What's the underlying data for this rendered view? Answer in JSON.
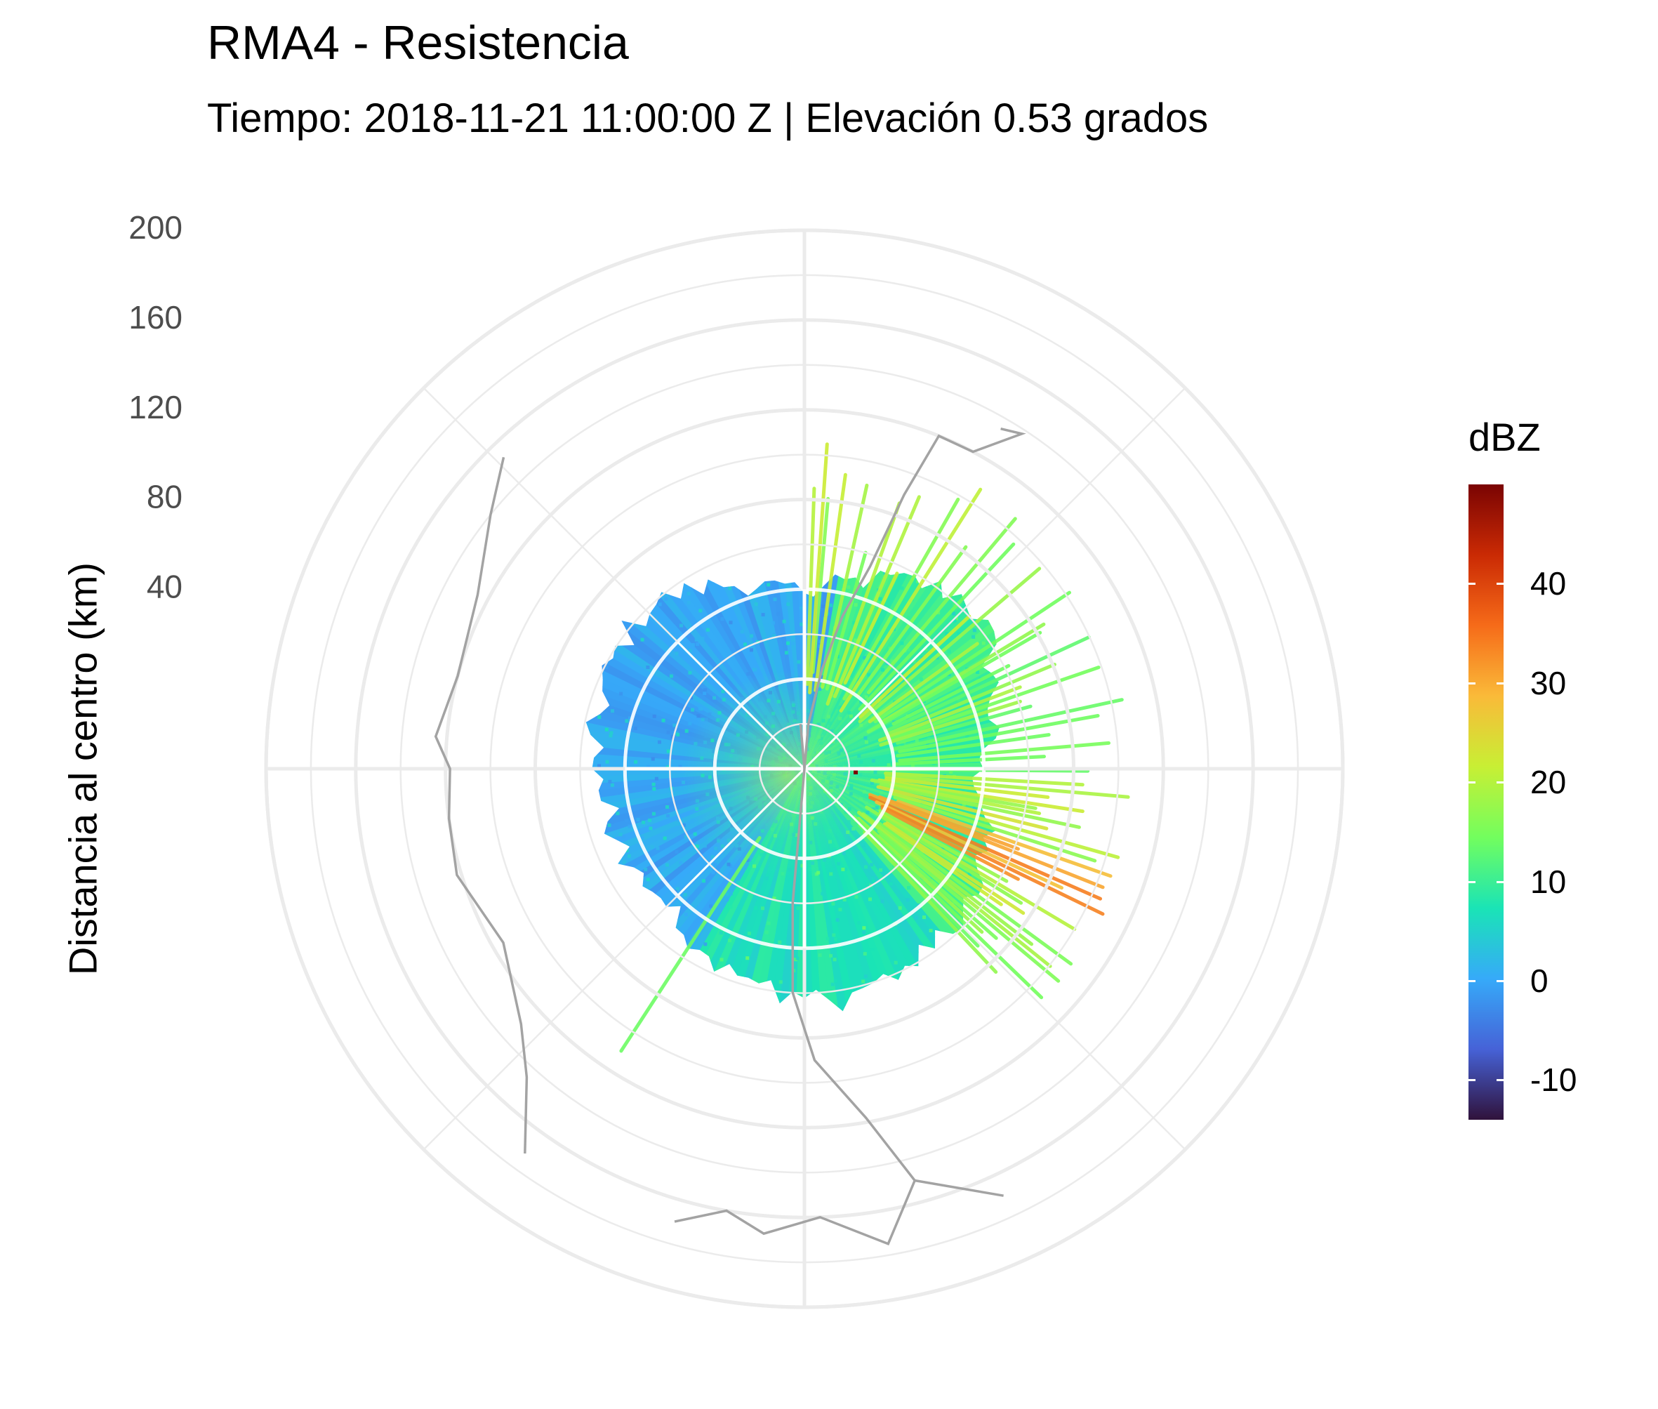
{
  "chart_data": {
    "type": "polar-raster",
    "title": "RMA4 - Resistencia",
    "subtitle": "Tiempo: 2018-11-21 11:00:00 Z | Elevación 0.53 grados",
    "ylabel": "Distancia al centro (km)",
    "radial_ticks": [
      "40",
      "80",
      "120",
      "160",
      "200"
    ],
    "radial_tick_values": [
      40,
      80,
      120,
      160,
      200
    ],
    "radial_range": [
      0,
      240
    ],
    "grid": true,
    "color_scale": {
      "title": "dBZ",
      "range": [
        -14,
        50
      ],
      "ticks": [
        "-10",
        "0",
        "10",
        "20",
        "30",
        "40"
      ],
      "tick_values": [
        -10,
        0,
        10,
        20,
        30,
        40
      ],
      "colors": [
        "#30123b",
        "#4662d7",
        "#36aaf9",
        "#1ae4b6",
        "#72fe5e",
        "#c8ef34",
        "#faba39",
        "#f66b19",
        "#ca2a04",
        "#7a0403"
      ]
    },
    "echo_extent_km": {
      "north": 80,
      "northeast": 110,
      "east": 80,
      "southeast": 100,
      "south": 110,
      "southwest": 90,
      "west": 95,
      "northwest": 105
    },
    "echo_dominant_dbz": {
      "north_west": 0,
      "south": 7,
      "near_center": 15,
      "east_rays": 18,
      "southeast_max": 35
    },
    "radar_location_label": "",
    "legend_placement": "right",
    "map_outline_color": "#a3a3a3",
    "grid_color": "#ebebeb"
  }
}
